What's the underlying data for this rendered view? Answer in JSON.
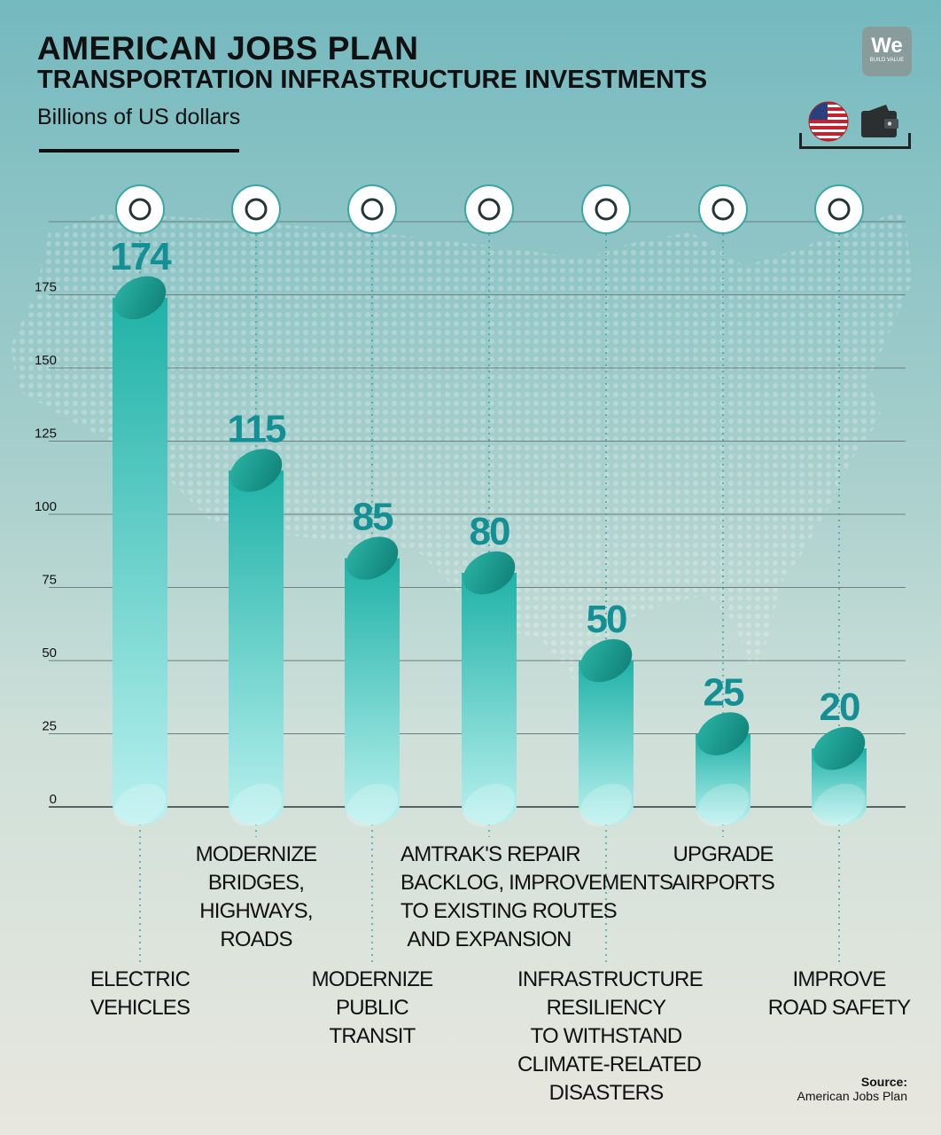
{
  "title": "AMERICAN JOBS PLAN",
  "subtitle": "TRANSPORTATION INFRASTRUCTURE INVESTMENTS",
  "units": "Billions of US dollars",
  "logo": {
    "main": "We",
    "tagline": "BUILD VALUE"
  },
  "source": {
    "label": "Source:",
    "text": "American Jobs Plan"
  },
  "colors": {
    "value_text": "#148f94",
    "bar_top": "#1fb2a7",
    "bar_bottom": "#b9f1ef",
    "cap": "#158a80"
  },
  "chart_data": {
    "type": "bar",
    "title": "AMERICAN JOBS PLAN",
    "subtitle": "TRANSPORTATION INFRASTRUCTURE INVESTMENTS",
    "ylabel": "Billions of US dollars",
    "ylim": [
      0,
      200
    ],
    "yticks": [
      0,
      25,
      50,
      75,
      100,
      125,
      150,
      175
    ],
    "grid": true,
    "categories": [
      "ELECTRIC VEHICLES",
      "MODERNIZE BRIDGES, HIGHWAYS, ROADS",
      "MODERNIZE PUBLIC TRANSIT",
      "AMTRAK'S REPAIR BACKLOG, IMPROVEMENTS TO EXISTING ROUTES AND EXPANSION",
      "INFRASTRUCTURE RESILIENCY TO WITHSTAND CLIMATE-RELATED DISASTERS",
      "UPGRADE AIRPORTS",
      "IMPROVE ROAD SAFETY"
    ],
    "category_lines": [
      [
        "ELECTRIC",
        "VEHICLES"
      ],
      [
        "MODERNIZE",
        "BRIDGES,",
        "HIGHWAYS,",
        "ROADS"
      ],
      [
        "MODERNIZE",
        "PUBLIC",
        "TRANSIT"
      ],
      [
        "AMTRAK'S REPAIR",
        "BACKLOG, IMPROVEMENTS",
        "TO EXISTING ROUTES",
        "AND EXPANSION"
      ],
      [
        "INFRASTRUCTURE",
        "RESILIENCY",
        "TO WITHSTAND",
        "CLIMATE-RELATED",
        "DISASTERS"
      ],
      [
        "UPGRADE",
        "AIRPORTS"
      ],
      [
        "IMPROVE",
        "ROAD SAFETY"
      ]
    ],
    "icons": [
      "electric-car-icon",
      "highway-icon",
      "bus-icon",
      "railway-tunnel-icon",
      "cracked-building-icon",
      "airplane-icon",
      "pedestrian-icon"
    ],
    "values": [
      174,
      115,
      85,
      80,
      50,
      25,
      20
    ]
  }
}
